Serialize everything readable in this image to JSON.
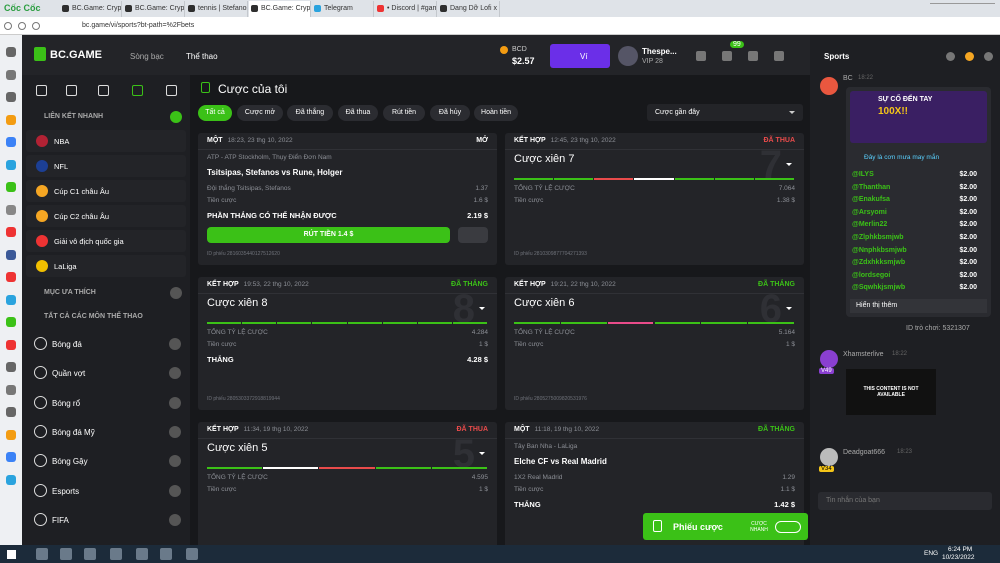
{
  "browser": {
    "brand": "Cốc Cốc",
    "tabs": [
      "BC.Game: Crypto Casino",
      "BC.Game: Crypto Casino",
      "tennis | Stefanos Tsitsipas",
      "BC.Game: Crypto Casino",
      "Telegram",
      "• Discord | #games",
      "Dang Dỡ Lofi x Thời tình"
    ],
    "url": "bc.game/vi/sports?bt-path=%2Fbets"
  },
  "header": {
    "logo": "BC.GAME",
    "casino": "Sòng bạc",
    "sports": "Thể thao",
    "currency": "BCD",
    "balance": "$2.57",
    "wallet": "Ví",
    "username": "Thespe...",
    "vip": "VIP 28",
    "badge": "99"
  },
  "sidebar": {
    "quick_links_title": "LIÊN KẾT NHANH",
    "quick_links": [
      "NBA",
      "NFL",
      "Cúp C1 châu Âu",
      "Cúp C2 châu Âu",
      "Giải vô địch quốc gia",
      "LaLiga"
    ],
    "favorites_title": "MỤC ƯA THÍCH",
    "all_sports_title": "TẤT CẢ CÁC MÔN THỂ THAO",
    "sports": [
      "Bóng đá",
      "Quần vợt",
      "Bóng rổ",
      "Bóng đá Mỹ",
      "Bóng Gậy",
      "Esports",
      "FIFA"
    ]
  },
  "main": {
    "title": "Cược của tôi",
    "filters": [
      "Tất cả",
      "Cược mở",
      "Đã thắng",
      "Đã thua",
      "Rút tiền",
      "Đã hủy",
      "Hoàn tiền"
    ],
    "sort": "Cược gần đây",
    "cards": [
      {
        "type": "MỘT",
        "time": "18:23, 23 thg 10, 2022",
        "status": "MỞ",
        "status_color": "#ffffff",
        "league": "ATP - ATP Stockholm, Thụy Điển Đơn Nam",
        "match": "Tsitsipas, Stefanos vs Rune, Holger",
        "rows": [
          [
            "Đội thắng Tsitsipas, Stefanos",
            "1.37"
          ],
          [
            "Tiền cược",
            "1.6 $"
          ]
        ],
        "total": [
          "PHẦN THẮNG CÓ THỂ NHẬN ĐƯỢC",
          "2.19 $"
        ],
        "cashout": "RÚT TIỀN 1.4 $",
        "id": "ID phiếu 2816035440127512620"
      },
      {
        "type": "KẾT HỢP",
        "time": "12:45, 23 thg 10, 2022",
        "status": "ĐÃ THUA",
        "status_color": "#e94b4b",
        "title": "Cược xiên 7",
        "big": "7",
        "legs": [
          "#3bc117",
          "#3bc117",
          "#e94b4b",
          "#ffffff",
          "#3bc117",
          "#3bc117",
          "#3bc117"
        ],
        "rows": [
          [
            "TỔNG TỶ LỆ CƯỢC",
            "7.064"
          ],
          [
            "Tiền cược",
            "1.38 $"
          ]
        ],
        "id": "ID phiếu 2810309877704271393"
      },
      {
        "type": "KẾT HỢP",
        "time": "19:53, 22 thg 10, 2022",
        "status": "ĐÃ THẮNG",
        "status_color": "#3bc117",
        "title": "Cược xiên 8",
        "big": "8",
        "legs": [
          "#3bc117",
          "#3bc117",
          "#3bc117",
          "#3bc117",
          "#3bc117",
          "#3bc117",
          "#3bc117",
          "#3bc117"
        ],
        "rows": [
          [
            "TỔNG TỶ LỆ CƯỢC",
            "4.284"
          ],
          [
            "Tiền cược",
            "1 $"
          ]
        ],
        "total": [
          "THẮNG",
          "4.28 $"
        ],
        "id": "ID phiếu 2805303372918819944"
      },
      {
        "type": "KẾT HỢP",
        "time": "19:21, 22 thg 10, 2022",
        "status": "ĐÃ THẮNG",
        "status_color": "#3bc117",
        "title": "Cược xiên 6",
        "big": "6",
        "legs": [
          "#3bc117",
          "#3bc117",
          "#e94b8a",
          "#3bc117",
          "#3bc117",
          "#3bc117"
        ],
        "rows": [
          [
            "TỔNG TỶ LỆ CƯỢC",
            "5.164"
          ],
          [
            "Tiền cược",
            "1 $"
          ]
        ],
        "id": "ID phiếu 2805275009820531976"
      },
      {
        "type": "KẾT HỢP",
        "time": "11:34, 19 thg 10, 2022",
        "status": "ĐÃ THUA",
        "status_color": "#e94b4b",
        "title": "Cược xiên 5",
        "big": "5",
        "legs": [
          "#3bc117",
          "#ffffff",
          "#e94b4b",
          "#3bc117",
          "#3bc117"
        ],
        "rows": [
          [
            "TỔNG TỶ LỆ CƯỢC",
            "4.595"
          ],
          [
            "Tiền cược",
            "1 $"
          ]
        ]
      },
      {
        "type": "MỘT",
        "time": "11:18, 19 thg 10, 2022",
        "status": "ĐÃ THẮNG",
        "status_color": "#3bc117",
        "league": "Tây Ban Nha - LaLiga",
        "match": "Elche CF vs Real Madrid",
        "rows": [
          [
            "1X2 Real Madrid",
            "1.29"
          ],
          [
            "Tiền cược",
            "1.1 $"
          ]
        ],
        "total": [
          "THẮNG",
          "1.42 $"
        ]
      }
    ]
  },
  "chat": {
    "title": "Sports",
    "bot": {
      "name": "BC",
      "time": "18:22",
      "headline": "SỰ CỐ ĐẾN TAY",
      "multiplier": "100X!!",
      "subtitle": "Đây là cơn mưa may mắn",
      "winners": [
        [
          "@ILYS",
          "$2.00"
        ],
        [
          "@Thanthan",
          "$2.00"
        ],
        [
          "@Enakufsa",
          "$2.00"
        ],
        [
          "@Arsyomi",
          "$2.00"
        ],
        [
          "@Merlin22",
          "$2.00"
        ],
        [
          "@Zlphkbsmjwb",
          "$2.00"
        ],
        [
          "@Nnphkbsmjwb",
          "$2.00"
        ],
        [
          "@Zdxhkksmjwb",
          "$2.00"
        ],
        [
          "@lordsegoi",
          "$2.00"
        ],
        [
          "@Sqwhkjsmjwb",
          "$2.00"
        ]
      ],
      "more": "Hiển thị thêm",
      "game_id": "ID trò chơi: 5321307"
    },
    "users": [
      {
        "name": "Xhamsterlive",
        "time": "18:22",
        "vip": "V49",
        "notice": "THIS CONTENT IS NOT AVAILABLE"
      },
      {
        "name": "Deadgoat666",
        "time": "18:23",
        "vip": "V34"
      }
    ],
    "input": "Tin nhắn của bạn"
  },
  "bet_slip": {
    "label": "Phiếu cược",
    "quick_bet": "CƯỢC NHANH"
  },
  "taskbar": {
    "lang": "ENG",
    "time": "6:24 PM",
    "date": "10/23/2022"
  }
}
